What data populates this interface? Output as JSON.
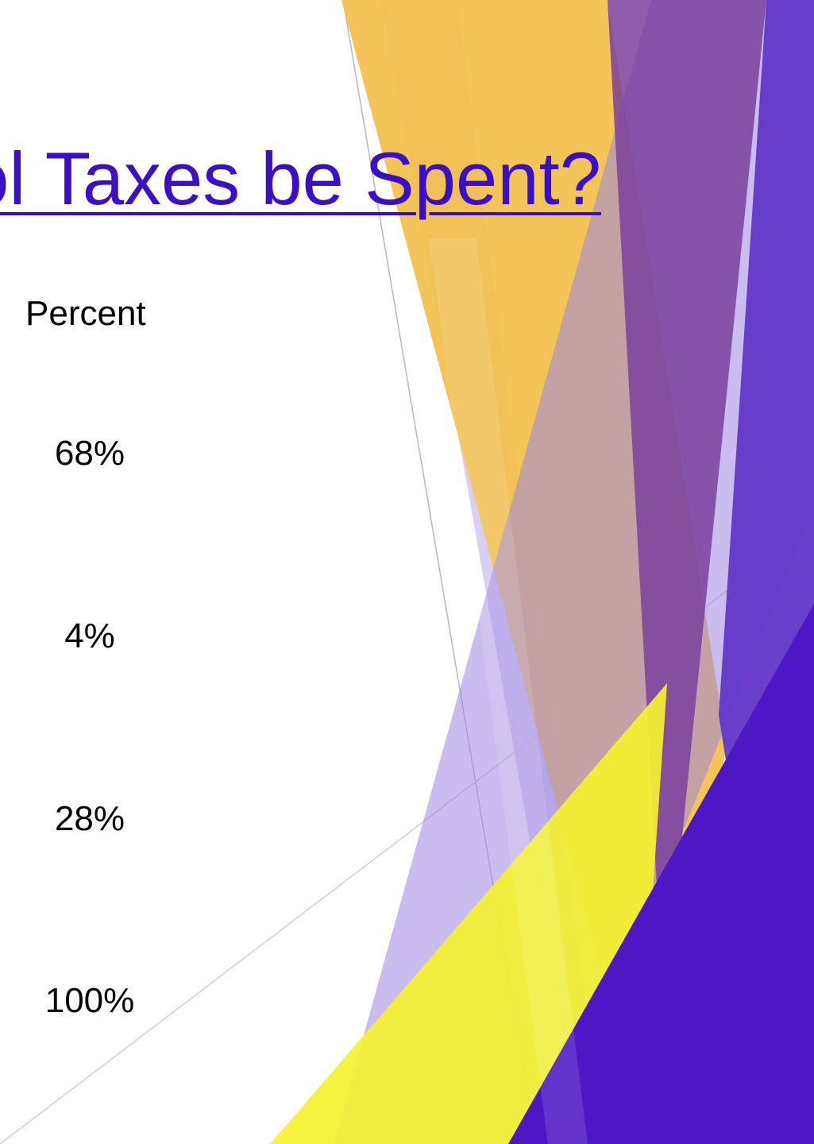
{
  "slide": {
    "title": "ol Taxes be Spent?",
    "table": {
      "column_header": "Percent",
      "values": [
        "68%",
        "4%",
        "28%",
        "100%"
      ]
    }
  },
  "theme": {
    "title_color": "#3b10c4",
    "accent_purple": "#4f17c4",
    "accent_gold": "#f2c14e",
    "accent_yellow": "#f5f230",
    "accent_lavender": "#b7a5e6"
  }
}
